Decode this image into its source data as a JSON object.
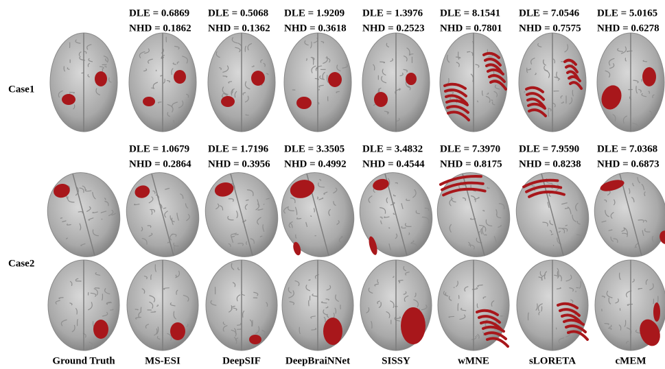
{
  "columns": [
    "Ground Truth",
    "MS-ESI",
    "DeepSIF",
    "DeepBraiNNet",
    "SISSY",
    "wMNE",
    "sLORETA",
    "cMEM"
  ],
  "cases": [
    {
      "label": "Case1",
      "metrics": [
        {
          "dle": "DLE = 0.6869",
          "nhd": "NHD = 0.1862"
        },
        {
          "dle": "DLE = 0.5068",
          "nhd": "NHD = 0.1362"
        },
        {
          "dle": "DLE = 1.9209",
          "nhd": "NHD = 0.3618"
        },
        {
          "dle": "DLE = 1.3976",
          "nhd": "NHD = 0.2523"
        },
        {
          "dle": "DLE = 8.1541",
          "nhd": "NHD = 0.7801"
        },
        {
          "dle": "DLE = 7.0546",
          "nhd": "NHD = 0.7575"
        },
        {
          "dle": "DLE = 5.0165",
          "nhd": "NHD = 0.6278"
        }
      ]
    },
    {
      "label": "Case2",
      "metrics": [
        {
          "dle": "DLE = 1.0679",
          "nhd": "NHD = 0.2864"
        },
        {
          "dle": "DLE = 1.7196",
          "nhd": "NHD = 0.3956"
        },
        {
          "dle": "DLE = 3.3505",
          "nhd": "NHD = 0.4992"
        },
        {
          "dle": "DLE = 3.4832",
          "nhd": "NHD = 0.4544"
        },
        {
          "dle": "DLE = 7.3970",
          "nhd": "NHD = 0.8175"
        },
        {
          "dle": "DLE = 7.9590",
          "nhd": "NHD = 0.8238"
        },
        {
          "dle": "DLE = 7.0368",
          "nhd": "NHD = 0.6873"
        }
      ]
    }
  ]
}
